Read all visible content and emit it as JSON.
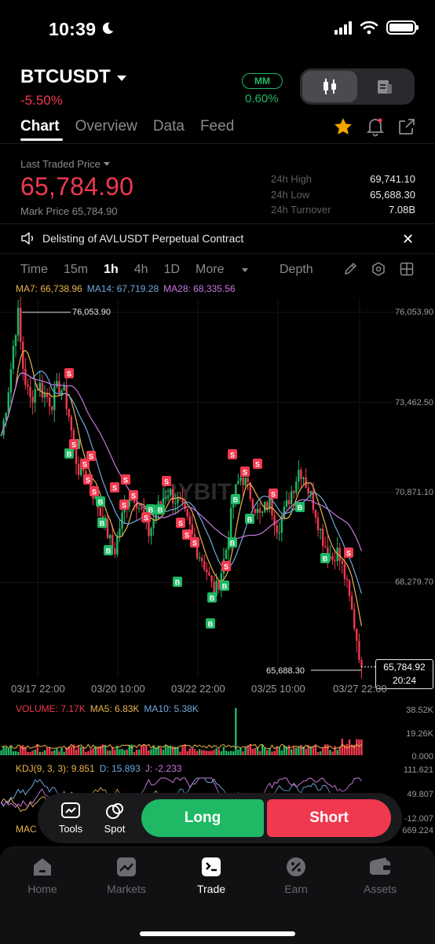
{
  "status_bar": {
    "time": "10:39"
  },
  "header": {
    "symbol": "BTCUSDT",
    "change": "-5.50%",
    "mm_badge": "MM",
    "mm_value": "0.60%"
  },
  "tabs": [
    {
      "label": "Chart",
      "active": true
    },
    {
      "label": "Overview",
      "active": false
    },
    {
      "label": "Data",
      "active": false
    },
    {
      "label": "Feed",
      "active": false
    }
  ],
  "price": {
    "last_traded_label": "Last Traded Price",
    "last_traded": "65,784.90",
    "mark_price": "Mark Price 65,784.90",
    "stats": [
      {
        "label": "24h High",
        "value": "69,741.10"
      },
      {
        "label": "24h Low",
        "value": "65,688.30"
      },
      {
        "label": "24h Turnover",
        "value": "7.08B"
      }
    ]
  },
  "notice": {
    "text": "Delisting of AVLUSDT Perpetual Contract"
  },
  "intervals": {
    "items": [
      "Time",
      "15m",
      "1h",
      "4h",
      "1D",
      "More"
    ],
    "active": "1h",
    "depth": "Depth"
  },
  "ma_line": {
    "ma7": "MA7: 66,738.96",
    "ma14": "MA14: 67,719.28",
    "ma28": "MA28: 68,335.56"
  },
  "chart_data": {
    "type": "candlestick",
    "y_axis_ticks": [
      "76,053.90",
      "73,462.50",
      "70,871.10",
      "68,279.70"
    ],
    "x_axis_ticks": [
      "03/17 22:00",
      "03/20 10:00",
      "03/22 22:00",
      "03/25 10:00",
      "03/27 22:00"
    ],
    "ylim": [
      65688.3,
      76053.9
    ],
    "high_marker": "76,053.90",
    "low_marker": "65,688.30",
    "current_price_label": "65,784.92",
    "countdown": "20:24",
    "watermark": "BYBIT",
    "closes": [
      72500,
      73200,
      74100,
      75200,
      76053.9,
      74600,
      73900,
      73500,
      73800,
      74000,
      73700,
      73600,
      73400,
      73800,
      73900,
      73700,
      73200,
      72400,
      71700,
      71300,
      71600,
      71100,
      70800,
      70500,
      70100,
      69800,
      69400,
      69100,
      69700,
      70200,
      70600,
      70900,
      70700,
      70400,
      70100,
      69600,
      69900,
      70300,
      70500,
      70800,
      70900,
      70700,
      70600,
      70400,
      70100,
      69800,
      69400,
      69100,
      68900,
      68600,
      68200,
      67900,
      68300,
      68800,
      69400,
      70300,
      70900,
      71300,
      71200,
      70900,
      70600,
      70300,
      70100,
      70400,
      70600,
      70200,
      69800,
      70100,
      70400,
      70800,
      71100,
      71500,
      71400,
      71000,
      70700,
      70300,
      69800,
      69400,
      69100,
      68900,
      69200,
      68800,
      68400,
      67800,
      67200,
      66500,
      65784.9
    ],
    "volume_axis": [
      "38.52K",
      "19.26K",
      "0.000"
    ],
    "kdj_axis": [
      "111.621",
      "49.807",
      "-12.007"
    ],
    "macd_axis": [
      "669.224"
    ]
  },
  "volume_line": {
    "volume": "VOLUME: 7.17K",
    "ma5": "MA5: 6.83K",
    "ma10": "MA10: 5.38K"
  },
  "kdj_line": {
    "k": "KDJ(9, 3, 3): 9.851",
    "d": "D: 15.893",
    "j": "J: -2.233"
  },
  "macd_label": "MAC",
  "float_bar": {
    "tools": "Tools",
    "spot": "Spot",
    "long": "Long",
    "short": "Short"
  },
  "bottom_nav": [
    {
      "label": "Home",
      "icon": "home-icon",
      "active": false
    },
    {
      "label": "Markets",
      "icon": "markets-icon",
      "active": false
    },
    {
      "label": "Trade",
      "icon": "trade-icon",
      "active": true
    },
    {
      "label": "Earn",
      "icon": "earn-icon",
      "active": false
    },
    {
      "label": "Assets",
      "icon": "assets-icon",
      "active": false
    }
  ],
  "colors": {
    "up": "#1fb865",
    "down": "#f0394f",
    "ma7": "#e9b44c",
    "ma14": "#6fa8dc",
    "ma28": "#c678dd"
  }
}
